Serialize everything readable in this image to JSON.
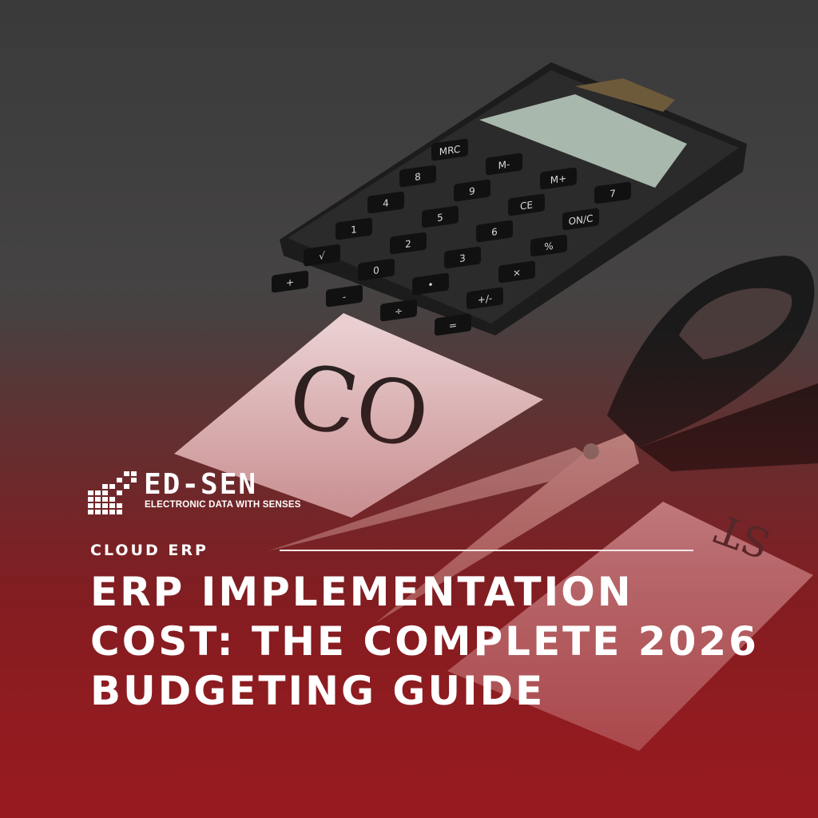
{
  "brand": {
    "name": "ED-SEN",
    "tagline": "ELECTRONIC DATA WITH SENSES"
  },
  "category": "CLOUD ERP",
  "title_lines": [
    "ERP IMPLEMENTATION",
    "COST: THE COMPLETE 2026",
    "BUDGETING GUIDE"
  ],
  "photo": {
    "card_text_1": "CO",
    "card_text_2": "ST",
    "calculator_keys": [
      "MRC",
      "M-",
      "M+",
      "7",
      "8",
      "9",
      "CE",
      "ON/C",
      "4",
      "5",
      "6",
      "%",
      "1",
      "2",
      "3",
      "×",
      "√",
      "0",
      "•",
      "+/-",
      "+",
      "-",
      "÷",
      "="
    ]
  },
  "colors": {
    "accent_red": "#9a1f24",
    "text": "#ffffff"
  }
}
